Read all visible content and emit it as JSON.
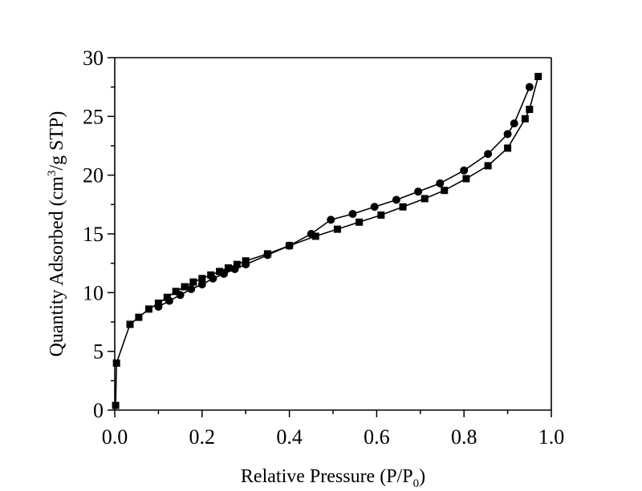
{
  "chart_data": {
    "type": "line",
    "xlabel_main": "Relative Pressure (P/P",
    "xlabel_sub": "0",
    "xlabel_close": ")",
    "ylabel_main": "Quantity Adsorbed (cm",
    "ylabel_sup": "3",
    "ylabel_rest": "/g STP)",
    "xlim": [
      0.0,
      1.0
    ],
    "ylim": [
      0,
      30
    ],
    "xticks": [
      "0.0",
      "0.2",
      "0.4",
      "0.6",
      "0.8",
      "1.0"
    ],
    "yticks": [
      "0",
      "5",
      "10",
      "15",
      "20",
      "25",
      "30"
    ],
    "grid": false,
    "series": [
      {
        "marker": "square",
        "color": "#000000",
        "x": [
          0.002,
          0.004,
          0.035,
          0.055,
          0.078,
          0.1,
          0.12,
          0.14,
          0.16,
          0.18,
          0.2,
          0.22,
          0.24,
          0.26,
          0.28,
          0.3,
          0.35,
          0.4,
          0.46,
          0.51,
          0.56,
          0.61,
          0.66,
          0.71,
          0.755,
          0.805,
          0.855,
          0.9,
          0.94,
          0.95,
          0.97
        ],
        "y": [
          0.4,
          4.0,
          7.3,
          7.9,
          8.6,
          9.1,
          9.6,
          10.1,
          10.5,
          10.9,
          11.2,
          11.5,
          11.8,
          12.1,
          12.4,
          12.7,
          13.3,
          14.0,
          14.8,
          15.4,
          16.0,
          16.6,
          17.3,
          18.0,
          18.7,
          19.7,
          20.8,
          22.3,
          24.8,
          25.6,
          28.4
        ]
      },
      {
        "marker": "circle",
        "color": "#000000",
        "x": [
          0.1,
          0.125,
          0.15,
          0.175,
          0.2,
          0.225,
          0.25,
          0.275,
          0.3,
          0.35,
          0.4,
          0.45,
          0.495,
          0.545,
          0.595,
          0.645,
          0.695,
          0.745,
          0.8,
          0.855,
          0.9,
          0.915,
          0.95
        ],
        "y": [
          8.8,
          9.3,
          9.8,
          10.3,
          10.7,
          11.2,
          11.6,
          12.0,
          12.4,
          13.2,
          14.0,
          15.0,
          16.2,
          16.7,
          17.3,
          17.9,
          18.6,
          19.3,
          20.4,
          21.8,
          23.5,
          24.4,
          27.5
        ]
      }
    ]
  }
}
